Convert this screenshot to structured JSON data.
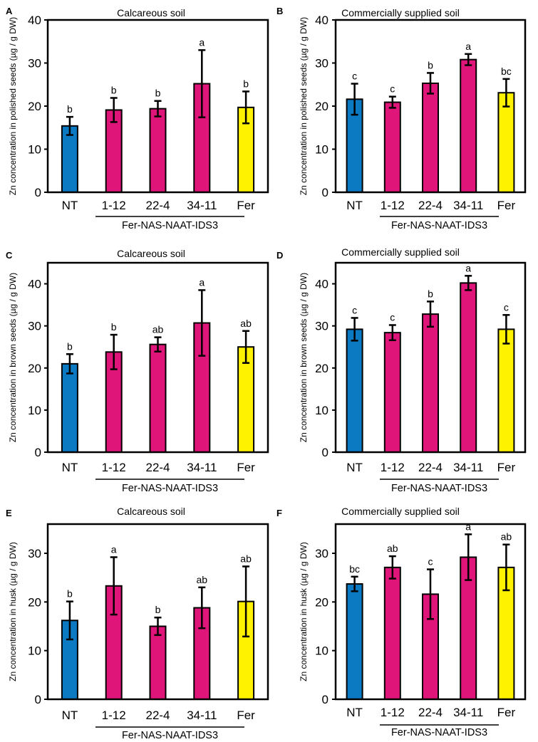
{
  "colors": {
    "NT": "#0b7ac2",
    "transgenic": "#e0157a",
    "Fer": "#fff200",
    "axis": "#000000"
  },
  "chart_data": [
    {
      "panel": "A",
      "type": "bar",
      "title": "Calcareous soil",
      "ylabel": "Zn concentration in polished seeds  (µg / g DW)",
      "ylim": [
        0,
        40
      ],
      "yticks": [
        "0",
        "10",
        "20",
        "30",
        "40"
      ],
      "categories": [
        "NT",
        "1-12",
        "22-4",
        "34-11",
        "Fer"
      ],
      "group_label": "Fer-NAS-NAAT-IDS3",
      "values": [
        15.4,
        19.1,
        19.4,
        25.2,
        19.7
      ],
      "errors": [
        2.1,
        2.8,
        1.8,
        7.8,
        3.7
      ],
      "significance": [
        "b",
        "b",
        "b",
        "a",
        "b"
      ]
    },
    {
      "panel": "B",
      "type": "bar",
      "title": "Commercially supplied soil",
      "ylabel": "Zn concentration in polished seeds  (µg / g DW)",
      "ylim": [
        0,
        40
      ],
      "yticks": [
        "0",
        "10",
        "20",
        "30",
        "40"
      ],
      "categories": [
        "NT",
        "1-12",
        "22-4",
        "34-11",
        "Fer"
      ],
      "group_label": "Fer-NAS-NAAT-IDS3",
      "values": [
        21.6,
        20.9,
        25.3,
        30.8,
        23.1
      ],
      "errors": [
        3.6,
        1.3,
        2.4,
        1.3,
        3.2
      ],
      "significance": [
        "c",
        "c",
        "b",
        "a",
        "bc"
      ]
    },
    {
      "panel": "C",
      "type": "bar",
      "title": "Calcareous soil",
      "ylabel": "Zn concentration in brown seeds  (µg / g DW)",
      "ylim": [
        0,
        45
      ],
      "yticks": [
        "0",
        "10",
        "20",
        "30",
        "40"
      ],
      "categories": [
        "NT",
        "1-12",
        "22-4",
        "34-11",
        "Fer"
      ],
      "group_label": "Fer-NAS-NAAT-IDS3",
      "values": [
        21.0,
        23.8,
        25.6,
        30.7,
        25.0
      ],
      "errors": [
        2.3,
        4.1,
        1.7,
        7.8,
        3.8
      ],
      "significance": [
        "b",
        "b",
        "ab",
        "a",
        "ab"
      ]
    },
    {
      "panel": "D",
      "type": "bar",
      "title": "Commercially supplied soil",
      "ylabel": "Zn concentration in brown seeds  (µg / g DW)",
      "ylim": [
        0,
        45
      ],
      "yticks": [
        "0",
        "10",
        "20",
        "30",
        "40"
      ],
      "categories": [
        "NT",
        "1-12",
        "22-4",
        "34-11",
        "Fer"
      ],
      "group_label": "Fer-NAS-NAAT-IDS3",
      "values": [
        29.2,
        28.4,
        32.8,
        40.2,
        29.2
      ],
      "errors": [
        2.7,
        1.8,
        3.0,
        1.7,
        3.4
      ],
      "significance": [
        "c",
        "c",
        "b",
        "a",
        "c"
      ]
    },
    {
      "panel": "E",
      "type": "bar",
      "title": "Calcareous soil",
      "ylabel": "Zn concentration in husk  (µg / g DW)",
      "ylim": [
        0,
        36
      ],
      "yticks": [
        "0",
        "10",
        "20",
        "30"
      ],
      "categories": [
        "NT",
        "1-12",
        "22-4",
        "34-11",
        "Fer"
      ],
      "group_label": "Fer-NAS-NAAT-IDS3",
      "values": [
        16.2,
        23.3,
        15.0,
        18.8,
        20.1
      ],
      "errors": [
        3.9,
        5.9,
        1.8,
        4.2,
        7.2
      ],
      "significance": [
        "b",
        "a",
        "b",
        "ab",
        "ab"
      ]
    },
    {
      "panel": "F",
      "type": "bar",
      "title": "Commercially supplied soil",
      "ylabel": "Zn concentration in husk  (µg / g DW)",
      "ylim": [
        0,
        36
      ],
      "yticks": [
        "0",
        "10",
        "20",
        "30"
      ],
      "categories": [
        "NT",
        "1-12",
        "22-4",
        "34-11",
        "Fer"
      ],
      "group_label": "Fer-NAS-NAAT-IDS3",
      "values": [
        23.7,
        27.1,
        21.6,
        29.2,
        27.1
      ],
      "errors": [
        1.5,
        2.3,
        5.1,
        4.7,
        4.7
      ],
      "significance": [
        "bc",
        "ab",
        "c",
        "a",
        "ab"
      ]
    }
  ]
}
